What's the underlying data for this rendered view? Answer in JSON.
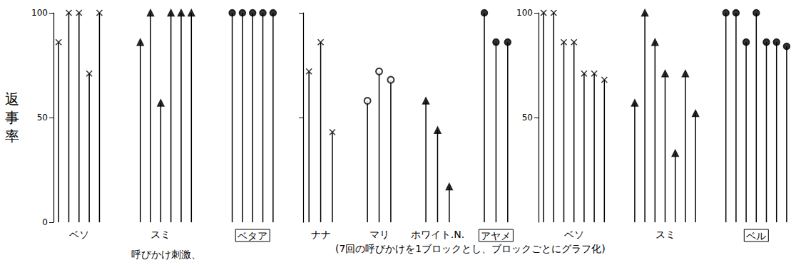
{
  "chart_data": [
    {
      "type": "bar",
      "color": "#000000",
      "ylabel": "返事率",
      "xlabel": "呼びかけ刺激、",
      "ylim": [
        0,
        100
      ],
      "yticks": [
        0,
        50,
        100
      ],
      "grid": false,
      "categories": [
        null,
        null,
        "ベソ",
        null,
        null,
        null,
        null,
        null,
        null,
        null,
        "スミ",
        null,
        null,
        null,
        null,
        null,
        null,
        null,
        null,
        "ベタア",
        null,
        null
      ],
      "series": [
        {
          "marker": "x",
          "values": [
            86,
            100,
            100,
            71,
            100,
            null,
            null,
            null,
            null,
            null,
            null,
            null,
            null,
            null,
            null,
            null,
            null,
            null,
            null,
            null,
            null,
            null
          ]
        },
        {
          "marker": "triangle",
          "values": [
            null,
            null,
            null,
            null,
            null,
            null,
            null,
            null,
            86,
            100,
            57,
            100,
            100,
            100,
            null,
            null,
            null,
            null,
            null,
            null,
            null,
            null
          ]
        },
        {
          "marker": "dot",
          "values": [
            null,
            null,
            null,
            null,
            null,
            null,
            null,
            null,
            null,
            null,
            null,
            null,
            null,
            null,
            null,
            null,
            null,
            100,
            100,
            100,
            100,
            100
          ]
        }
      ]
    },
    {
      "type": "bar",
      "color": "#000000",
      "ylim": [
        0,
        100
      ],
      "yticks": [
        50,
        100
      ],
      "grid": false,
      "tick_labels": "x",
      "categories": [
        null,
        "ナナ",
        null,
        null,
        null,
        null,
        "マリ",
        null,
        null,
        null,
        null,
        "ホワイト.N.",
        null,
        null,
        null,
        null,
        "アヤメ",
        null
      ],
      "series": [
        {
          "marker": "x",
          "values": [
            72,
            86,
            43,
            null,
            null,
            null,
            null,
            null,
            null,
            null,
            null,
            null,
            null,
            null,
            null,
            null,
            null,
            null
          ]
        },
        {
          "marker": "circle",
          "values": [
            null,
            null,
            null,
            null,
            null,
            58,
            72,
            68,
            null,
            null,
            null,
            null,
            null,
            null,
            null,
            null,
            null,
            null
          ]
        },
        {
          "marker": "triangle",
          "values": [
            null,
            null,
            null,
            null,
            null,
            null,
            null,
            null,
            null,
            null,
            58,
            44,
            17,
            null,
            null,
            null,
            null,
            null
          ]
        },
        {
          "marker": "dot",
          "values": [
            null,
            null,
            null,
            null,
            null,
            null,
            null,
            null,
            null,
            null,
            null,
            null,
            null,
            null,
            null,
            100,
            86,
            86
          ]
        }
      ]
    },
    {
      "type": "bar",
      "color": "#000000",
      "ylim": [
        0,
        100
      ],
      "yticks": [
        50,
        100
      ],
      "grid": false,
      "categories": [
        null,
        null,
        null,
        "ベソ",
        null,
        null,
        null,
        null,
        null,
        null,
        null,
        null,
        "スミ",
        null,
        null,
        null,
        null,
        null,
        null,
        null,
        null,
        "ベル",
        null,
        null,
        null
      ],
      "series": [
        {
          "marker": "x",
          "values": [
            100,
            100,
            86,
            86,
            71,
            71,
            68,
            null,
            null,
            null,
            null,
            null,
            null,
            null,
            null,
            null,
            null,
            null,
            null,
            null,
            null,
            null,
            null,
            null,
            null
          ]
        },
        {
          "marker": "triangle",
          "values": [
            null,
            null,
            null,
            null,
            null,
            null,
            null,
            null,
            null,
            57,
            100,
            86,
            71,
            33,
            71,
            52,
            null,
            null,
            null,
            null,
            null,
            null,
            null,
            null,
            null
          ]
        },
        {
          "marker": "dot",
          "values": [
            null,
            null,
            null,
            null,
            null,
            null,
            null,
            null,
            null,
            null,
            null,
            null,
            null,
            null,
            null,
            null,
            null,
            null,
            100,
            100,
            86,
            100,
            86,
            86,
            84
          ]
        }
      ]
    }
  ],
  "caption": "(7回の呼びかけを1ブロックとし、ブロックごとにグラフ化)"
}
